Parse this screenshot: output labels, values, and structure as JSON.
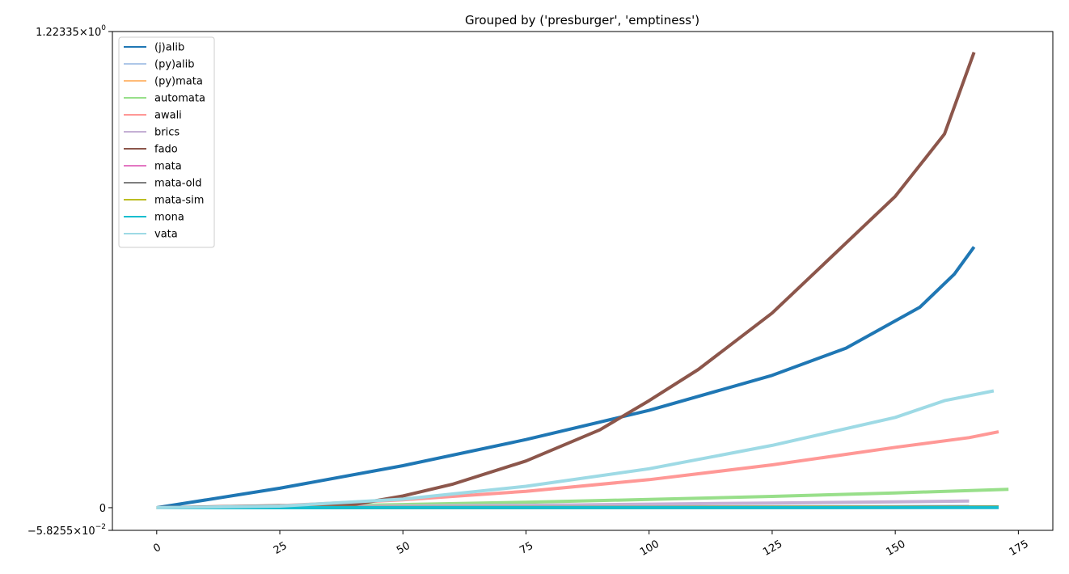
{
  "chart_data": {
    "type": "line",
    "title": "Grouped by ('presburger', 'emptiness')",
    "xlabel": "",
    "ylabel": "",
    "xlim": [
      -9,
      182
    ],
    "ylim": [
      -0.058255,
      1.22335
    ],
    "x_ticks": [
      0,
      25,
      50,
      75,
      100,
      125,
      150,
      175
    ],
    "y_tick_labels": [
      {
        "value": 1.22335,
        "mantissa": "1.22335",
        "exponent": "0"
      },
      {
        "value": 0,
        "mantissa": "0",
        "exponent": ""
      },
      {
        "value": -0.058255,
        "mantissa": "−5.8255",
        "exponent": "−2"
      }
    ],
    "legend_position": "upper left",
    "grid": false,
    "series": [
      {
        "name": "(j)alib",
        "color": "#1f77b4",
        "x": [
          0,
          25,
          50,
          75,
          100,
          125,
          140,
          155,
          162,
          166
        ],
        "y": [
          0,
          0.05,
          0.108,
          0.175,
          0.25,
          0.34,
          0.41,
          0.515,
          0.6,
          0.67
        ]
      },
      {
        "name": "(py)alib",
        "color": "#aec7e8",
        "x": [
          0,
          25,
          50,
          75,
          100,
          125,
          150,
          165
        ],
        "y": [
          0,
          0.0005,
          0.001,
          0.0015,
          0.002,
          0.0025,
          0.003,
          0.0035
        ]
      },
      {
        "name": "(py)mata",
        "color": "#ffbb78",
        "x": [
          0,
          25,
          50,
          75,
          100,
          125,
          150,
          171
        ],
        "y": [
          0,
          0.0003,
          0.0006,
          0.0009,
          0.0012,
          0.0015,
          0.0018,
          0.002
        ]
      },
      {
        "name": "automata",
        "color": "#98df8a",
        "x": [
          0,
          25,
          50,
          75,
          100,
          125,
          150,
          173
        ],
        "y": [
          0,
          0.003,
          0.008,
          0.014,
          0.021,
          0.029,
          0.038,
          0.047
        ]
      },
      {
        "name": "awali",
        "color": "#ff9896",
        "x": [
          0,
          25,
          50,
          75,
          100,
          125,
          150,
          165,
          171
        ],
        "y": [
          0,
          0.005,
          0.02,
          0.042,
          0.072,
          0.11,
          0.155,
          0.18,
          0.195
        ]
      },
      {
        "name": "brics",
        "color": "#c5b0d5",
        "x": [
          0,
          25,
          50,
          75,
          100,
          125,
          150,
          165
        ],
        "y": [
          0,
          0.002,
          0.004,
          0.006,
          0.009,
          0.012,
          0.015,
          0.017
        ]
      },
      {
        "name": "fado",
        "color": "#8c564b",
        "x": [
          0,
          25,
          35,
          40,
          50,
          60,
          75,
          90,
          100,
          110,
          125,
          140,
          150,
          160,
          166
        ],
        "y": [
          0,
          0.005,
          0.005,
          0.008,
          0.03,
          0.06,
          0.12,
          0.2,
          0.275,
          0.355,
          0.5,
          0.68,
          0.8,
          0.96,
          1.17
        ]
      },
      {
        "name": "mata",
        "color": "#e377c2",
        "x": [
          0,
          50,
          100,
          150,
          171
        ],
        "y": [
          0,
          0.0002,
          0.0004,
          0.0006,
          0.0008
        ]
      },
      {
        "name": "mata-old",
        "color": "#7f7f7f",
        "x": [
          0,
          50,
          100,
          150,
          171
        ],
        "y": [
          0,
          0.0005,
          0.001,
          0.0015,
          0.002
        ]
      },
      {
        "name": "mata-sim",
        "color": "#bcbd22",
        "x": [
          0,
          50,
          100,
          150,
          171
        ],
        "y": [
          0,
          0.0003,
          0.0006,
          0.0009,
          0.0012
        ]
      },
      {
        "name": "mona",
        "color": "#17becf",
        "x": [
          0,
          50,
          100,
          150,
          171
        ],
        "y": [
          0,
          0.0001,
          0.0002,
          0.0003,
          0.0004
        ]
      },
      {
        "name": "vata",
        "color": "#9edae5",
        "x": [
          0,
          25,
          50,
          75,
          100,
          125,
          150,
          160,
          170
        ],
        "y": [
          0,
          0.004,
          0.022,
          0.055,
          0.1,
          0.16,
          0.232,
          0.275,
          0.3
        ]
      }
    ]
  }
}
